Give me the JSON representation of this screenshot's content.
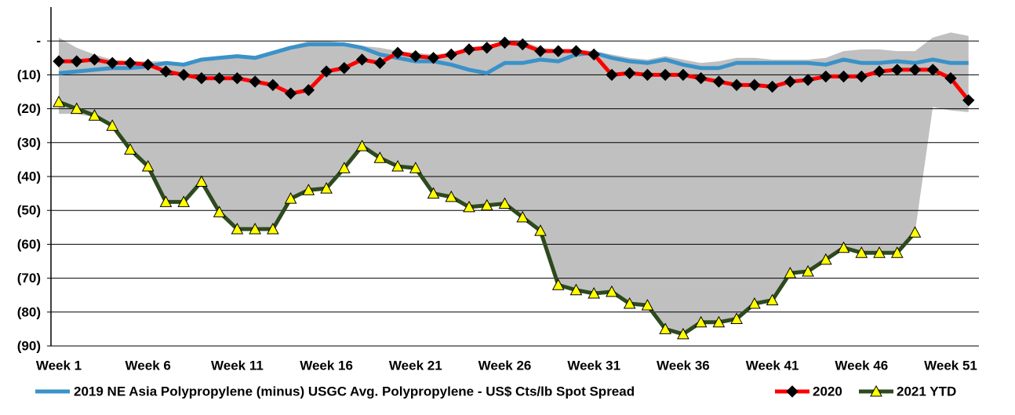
{
  "chart_data": {
    "type": "line",
    "categories": [
      "Week 1",
      null,
      null,
      null,
      null,
      "Week 6",
      null,
      null,
      null,
      null,
      "Week 11",
      null,
      null,
      null,
      null,
      "Week 16",
      null,
      null,
      null,
      null,
      "Week 21",
      null,
      null,
      null,
      null,
      "Week 26",
      null,
      null,
      null,
      null,
      "Week 31",
      null,
      null,
      null,
      null,
      "Week 36",
      null,
      null,
      null,
      null,
      "Week 41",
      null,
      null,
      null,
      null,
      "Week 46",
      null,
      null,
      null,
      null,
      "Week 51",
      null
    ],
    "ylim": [
      -90,
      10
    ],
    "yticks": [
      {
        "value": 0,
        "label": "-"
      },
      {
        "value": -10,
        "label": "(10)"
      },
      {
        "value": -20,
        "label": "(20)"
      },
      {
        "value": -30,
        "label": "(30)"
      },
      {
        "value": -40,
        "label": "(40)"
      },
      {
        "value": -50,
        "label": "(50)"
      },
      {
        "value": -60,
        "label": "(60)"
      },
      {
        "value": -70,
        "label": "(70)"
      },
      {
        "value": -80,
        "label": "(80)"
      },
      {
        "value": -90,
        "label": "(90)"
      }
    ],
    "grid": true,
    "legend": "bottom",
    "band": {
      "color": "#c0c0c0",
      "upper": [
        1,
        -2,
        -4,
        -5.5,
        -6,
        -6,
        -6,
        -6.5,
        -5,
        -4.5,
        -4.5,
        -4.5,
        -3,
        -1.5,
        0,
        0,
        -0.5,
        -1.5,
        -2,
        -3,
        -3.5,
        -4,
        -3.5,
        -2,
        -1.5,
        0,
        0,
        -2,
        -2.5,
        -2.5,
        -3,
        -4,
        -5,
        -5.5,
        -4.5,
        -5.5,
        -6.5,
        -6,
        -5,
        -5,
        -5.5,
        -5.5,
        -5.5,
        -5,
        -3,
        -2.5,
        -2.5,
        -3,
        -3,
        1,
        2.5,
        1.5
      ],
      "lower": [
        -21.5,
        -21.5,
        -22.5,
        -25,
        -32,
        -37,
        -47.5,
        -47.5,
        -41.5,
        -50.5,
        -55.5,
        -55.5,
        -55.5,
        -46.5,
        -44,
        -43.5,
        -37.5,
        -31,
        -34.5,
        -37,
        -37.5,
        -45,
        -46,
        -49,
        -48.5,
        -48,
        -52,
        -56,
        -72,
        -73.5,
        -74.5,
        -74,
        -77.5,
        -78,
        -85,
        -86.5,
        -83,
        -83,
        -82,
        -77.5,
        -76.5,
        -68.5,
        -68,
        -64.5,
        -61,
        -62.5,
        -62.5,
        -62.5,
        -56.5,
        -19.5,
        -20.5,
        -21
      ]
    },
    "series": [
      {
        "name": "2019 NE Asia Polypropylene (minus) USGC Avg. Polypropylene - US$ Cts/lb Spot Spread",
        "color": "#3a92c8",
        "marker": "none",
        "values": [
          -9.5,
          -9,
          -8.5,
          -8,
          -8,
          -7.5,
          -6.5,
          -7,
          -5.5,
          -5,
          -4.5,
          -5,
          -3.5,
          -2,
          -1,
          -1,
          -1,
          -2,
          -4,
          -5,
          -6,
          -6,
          -7,
          -8.5,
          -9.5,
          -6.5,
          -6.5,
          -5.5,
          -6,
          -4,
          -3.5,
          -5,
          -6,
          -6.5,
          -5.5,
          -7,
          -8,
          -8,
          -6.5,
          -6.5,
          -6.5,
          -6.5,
          -6.5,
          -7,
          -5.5,
          -6.5,
          -6.5,
          -6,
          -6.5,
          -5.5,
          -6.5,
          -6.5
        ]
      },
      {
        "name": "2020",
        "color": "#ff0000",
        "marker": "diamond",
        "marker_color": "#000000",
        "values": [
          -6,
          -6,
          -5.5,
          -6.5,
          -6.5,
          -7,
          -9,
          -10,
          -11,
          -11,
          -11,
          -12,
          -13,
          -15.5,
          -14.5,
          -9,
          -8,
          -5.5,
          -6.5,
          -3.5,
          -4.5,
          -5,
          -4,
          -2.5,
          -2,
          -0.5,
          -1,
          -3,
          -3,
          -3,
          -4,
          -10,
          -9.5,
          -10,
          -10,
          -10,
          -11,
          -12,
          -13,
          -13,
          -13.5,
          -12,
          -11.5,
          -10.5,
          -10.5,
          -10.5,
          -9,
          -8.5,
          -8.5,
          -8.5,
          -11,
          -17.5
        ]
      },
      {
        "name": "2021 YTD",
        "color": "#2d4a1e",
        "marker": "triangle",
        "marker_color": "#ffff00",
        "values": [
          -18,
          -20,
          -22,
          -25,
          -32,
          -37,
          -47.5,
          -47.5,
          -41.5,
          -50.5,
          -55.5,
          -55.5,
          -55.5,
          -46.5,
          -44,
          -43.5,
          -37.5,
          -31,
          -34.5,
          -37,
          -37.5,
          -45,
          -46,
          -49,
          -48.5,
          -48,
          -52,
          -56,
          -72,
          -73.5,
          -74.5,
          -74,
          -77.5,
          -78,
          -85,
          -86.5,
          -83,
          -83,
          -82,
          -77.5,
          -76.5,
          -68.5,
          -68,
          -64.5,
          -61,
          -62.5,
          -62.5,
          -62.5,
          -56.5,
          null,
          null,
          null
        ]
      }
    ]
  }
}
